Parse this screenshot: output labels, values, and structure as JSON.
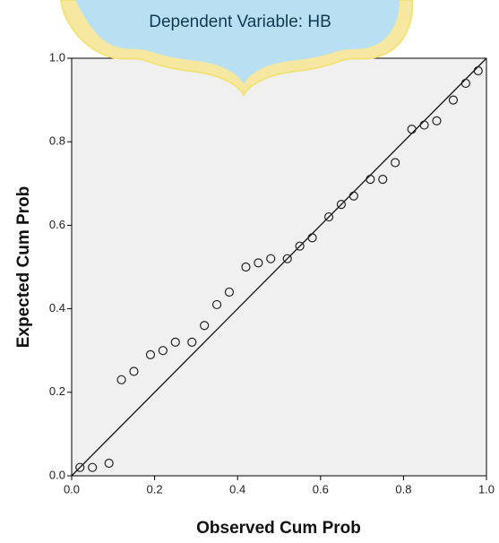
{
  "chart_data": {
    "type": "scatter",
    "title": "Dependent Variable: HB",
    "x_label": "Observed Cum Prob",
    "y_label": "Expected Cum Prob",
    "xlim": [
      0,
      1
    ],
    "ylim": [
      0,
      1
    ],
    "xticks": [
      {
        "value": 0,
        "label": "0.0"
      },
      0.2,
      0.4,
      0.6,
      0.8,
      {
        "value": 1,
        "label": "1.0"
      }
    ],
    "yticks": [
      {
        "value": 0,
        "label": "0.0"
      },
      0.2,
      0.4,
      0.6,
      0.8,
      {
        "value": 1,
        "label": "1.0"
      }
    ],
    "series": [
      {
        "color": "#222222",
        "x": [
          0.02,
          0.05,
          0.09,
          0.12,
          0.15,
          0.19,
          0.22,
          0.25,
          0.29,
          0.32,
          0.35,
          0.38,
          0.42,
          0.45,
          0.48,
          0.52,
          0.55,
          0.58,
          0.62,
          0.65,
          0.68,
          0.72,
          0.75,
          0.78,
          0.82,
          0.85,
          0.88,
          0.92,
          0.95,
          0.98
        ],
        "values": [
          0.02,
          0.02,
          0.03,
          0.23,
          0.25,
          0.29,
          0.3,
          0.32,
          0.32,
          0.36,
          0.41,
          0.44,
          0.5,
          0.51,
          0.52,
          0.52,
          0.55,
          0.57,
          0.62,
          0.65,
          0.67,
          0.71,
          0.71,
          0.75,
          0.83,
          0.84,
          0.85,
          0.9,
          0.94,
          0.97
        ]
      }
    ],
    "reference_line": true
  }
}
